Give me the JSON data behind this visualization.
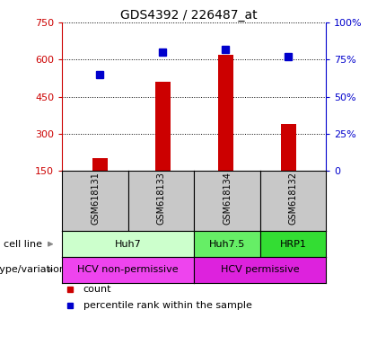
{
  "title": "GDS4392 / 226487_at",
  "samples": [
    "GSM618131",
    "GSM618133",
    "GSM618134",
    "GSM618132"
  ],
  "counts": [
    200,
    510,
    620,
    340
  ],
  "percentiles": [
    65,
    80,
    82,
    77
  ],
  "left_ylim": [
    150,
    750
  ],
  "left_yticks": [
    150,
    300,
    450,
    600,
    750
  ],
  "right_ylim": [
    0,
    100
  ],
  "right_yticks": [
    0,
    25,
    50,
    75,
    100
  ],
  "bar_color": "#cc0000",
  "marker_color": "#0000cc",
  "bar_width": 0.25,
  "cell_line_groups": [
    {
      "label": "Huh7",
      "start": 0,
      "end": 1,
      "color": "#ccffcc"
    },
    {
      "label": "Huh7.5",
      "start": 2,
      "end": 2,
      "color": "#66ee66"
    },
    {
      "label": "HRP1",
      "start": 3,
      "end": 3,
      "color": "#33dd33"
    }
  ],
  "genotype_groups": [
    {
      "label": "HCV non-permissive",
      "start": 0,
      "end": 1,
      "color": "#ee44ee"
    },
    {
      "label": "HCV permissive",
      "start": 2,
      "end": 3,
      "color": "#dd22dd"
    }
  ],
  "row_label_cell_line": "cell line",
  "row_label_genotype": "genotype/variation",
  "legend_count_label": "count",
  "legend_pct_label": "percentile rank within the sample",
  "bg_color": "#ffffff",
  "tick_area_color": "#c8c8c8"
}
